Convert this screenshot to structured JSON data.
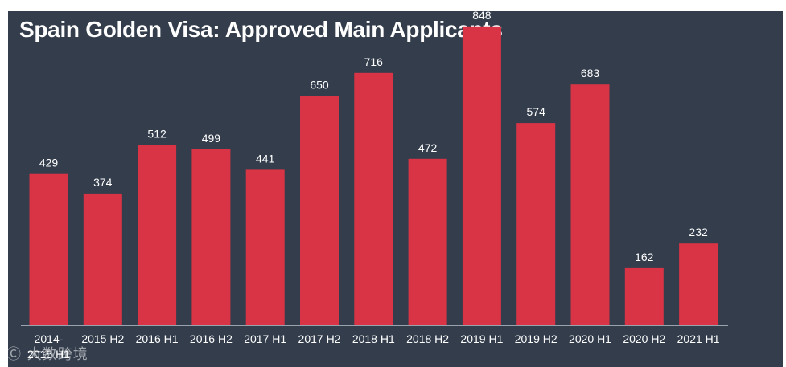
{
  "chart_data": {
    "type": "bar",
    "title": "Spain Golden Visa: Approved Main Applicants",
    "xlabel": "",
    "ylabel": "",
    "categories": [
      "2014-2015 H1",
      "2015 H2",
      "2016 H1",
      "2016 H2",
      "2017 H1",
      "2017 H2",
      "2018 H1",
      "2018 H2",
      "2019 H1",
      "2019 H2",
      "2020 H1",
      "2020 H2",
      "2021 H1"
    ],
    "values": [
      429,
      374,
      512,
      499,
      441,
      650,
      716,
      472,
      848,
      574,
      683,
      162,
      232
    ],
    "ylim": [
      0,
      900
    ],
    "grid": false,
    "data_labels": true,
    "colors": {
      "background": "#333d4c",
      "bar": "#d93445",
      "text": "#ffffff",
      "axis": "#9aa2ad"
    }
  },
  "watermark": "Ⓒ 大数跨境"
}
